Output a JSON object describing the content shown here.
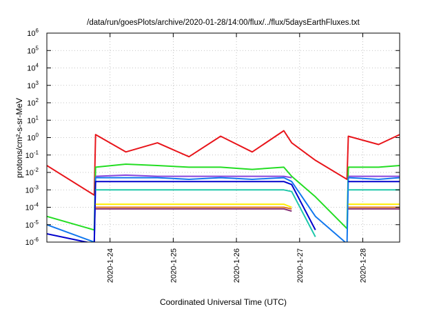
{
  "chart_data": {
    "type": "line",
    "title": "/data/run/goesPlots/archive/2020-01-28/14:00/flux/../flux/5daysEarthFluxes.txt",
    "xlabel": "Coordinated Universal Time (UTC)",
    "ylabel": "protons/cm²-s-sr-MeV",
    "yscale": "log",
    "ylim": [
      1e-06,
      1000000.0
    ],
    "xlim": [
      "2020-01-23 00:00",
      "2020-01-28 14:00"
    ],
    "grid": true,
    "x_tick_labels": [
      "2020-1-24",
      "2020-1-25",
      "2020-1-26",
      "2020-1-27",
      "2020-1-28"
    ],
    "y_tick_labels": [
      "10-6",
      "10-5",
      "10-4",
      "10-3",
      "10-2",
      "10-1",
      "100",
      "101",
      "102",
      "103",
      "104",
      "105",
      "106"
    ],
    "x": [
      "2020-01-23 00:00",
      "2020-01-23 18:00",
      "2020-01-23 18:30",
      "2020-01-24 06:00",
      "2020-01-24 18:00",
      "2020-01-25 06:00",
      "2020-01-25 18:00",
      "2020-01-26 06:00",
      "2020-01-26 18:00",
      "2020-01-26 21:00",
      "2020-01-27 06:00",
      "2020-01-27 18:00",
      "2020-01-27 18:30",
      "2020-01-28 06:00",
      "2020-01-28 14:00"
    ],
    "series": [
      {
        "color": "#e8141a",
        "values": [
          0.025,
          0.0005,
          1.5,
          0.15,
          0.5,
          0.08,
          1.2,
          0.15,
          2.5,
          0.5,
          0.05,
          0.004,
          1.2,
          0.4,
          1.5
        ]
      },
      {
        "color": "#22dd22",
        "values": [
          3e-05,
          5e-06,
          0.02,
          0.03,
          0.025,
          0.02,
          0.02,
          0.015,
          0.02,
          0.006,
          0.0004,
          6e-06,
          0.02,
          0.02,
          0.025
        ]
      },
      {
        "color": "#8844dd",
        "values": [
          null,
          null,
          0.006,
          0.007,
          0.006,
          0.006,
          0.006,
          0.006,
          0.006,
          0.005,
          null,
          null,
          0.006,
          0.006,
          0.006
        ]
      },
      {
        "color": "#1177ee",
        "values": [
          1e-05,
          1e-06,
          0.005,
          0.005,
          0.005,
          0.004,
          0.005,
          0.004,
          0.005,
          0.003,
          3e-05,
          8e-07,
          0.005,
          0.004,
          0.005
        ]
      },
      {
        "color": "#0000cc",
        "values": [
          3e-06,
          8e-07,
          0.003,
          0.003,
          0.003,
          0.003,
          0.003,
          0.003,
          0.003,
          0.002,
          5e-06,
          null,
          0.003,
          0.003,
          0.003
        ]
      },
      {
        "color": "#1ec8aa",
        "values": [
          null,
          null,
          0.001,
          0.001,
          0.001,
          0.001,
          0.001,
          0.001,
          0.001,
          0.0008,
          2e-06,
          null,
          0.001,
          0.001,
          0.001
        ]
      },
      {
        "color": "#ffee00",
        "values": [
          null,
          null,
          0.00015,
          0.00015,
          0.00015,
          0.00015,
          0.00015,
          0.00015,
          0.00015,
          0.0001,
          null,
          null,
          0.00015,
          0.00015,
          0.00015
        ]
      },
      {
        "color": "#e07820",
        "values": [
          null,
          null,
          0.0001,
          0.0001,
          0.0001,
          0.0001,
          0.0001,
          0.0001,
          0.0001,
          8e-05,
          null,
          null,
          0.0001,
          0.0001,
          0.0001
        ]
      },
      {
        "color": "#883377",
        "values": [
          null,
          null,
          8e-05,
          8e-05,
          8e-05,
          8e-05,
          8e-05,
          8e-05,
          8e-05,
          6e-05,
          null,
          null,
          8e-05,
          8e-05,
          8e-05
        ]
      }
    ]
  }
}
